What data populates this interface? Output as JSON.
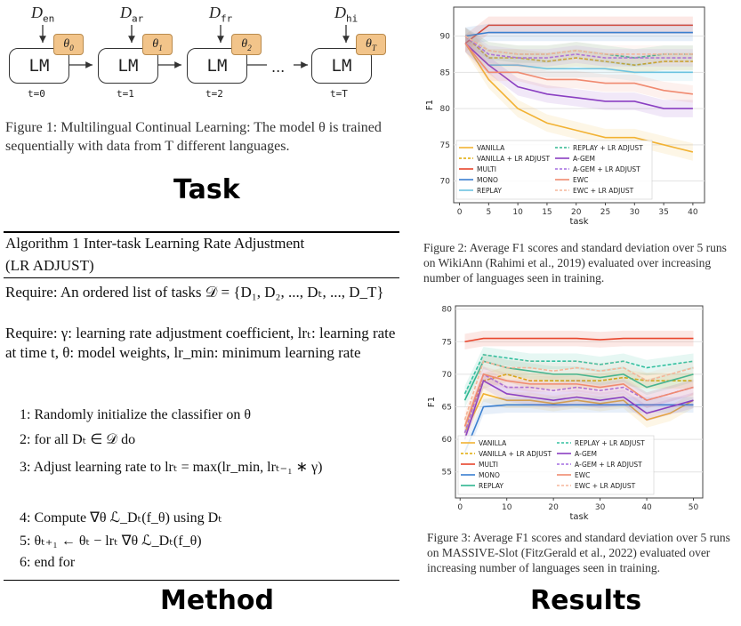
{
  "task": {
    "d_labels": [
      "D_en",
      "D_ar",
      "D_fr",
      "D_hi"
    ],
    "d_subs": [
      "en",
      "ar",
      "fr",
      "hi"
    ],
    "lm_label": "LM",
    "theta_subs": [
      "0",
      "1",
      "2",
      "T"
    ],
    "t_labels": [
      "t=0",
      "t=1",
      "t=2",
      "t=T"
    ],
    "ellipsis": "...",
    "caption": "Figure 1: Multilingual Continual Learning: The model θ is trained sequentially with data from T different languages.",
    "section_label": "Task"
  },
  "method": {
    "alg_title": "Algorithm 1 Inter-task Learning Rate Adjustment",
    "alg_subtitle": "(LR ADJUST)",
    "require1": "Require: An ordered list of tasks 𝒟 = {D₁, D₂, ..., Dₜ, ..., D_T}",
    "require2": "Require: γ: learning rate adjustment coefficient, lrₜ: learning rate at time t, θ: model weights, lr_min: minimum learning rate",
    "lines": [
      "1:  Randomly initialize the classifier on θ",
      "2:  for all Dₜ ∈ 𝒟 do",
      "3:      Adjust learning rate to lrₜ = max(lr_min, lrₜ₋₁ ∗ γ)",
      "4:      Compute ∇θ ℒ_Dₜ(f_θ) using Dₜ",
      "5:      θₜ₊₁ ← θₜ − lrₜ ∇θ ℒ_Dₜ(f_θ)",
      "6:  end for"
    ],
    "section_label": "Method"
  },
  "results": {
    "fig2_caption": "Figure 2: Average F1 scores and standard deviation over 5 runs on WikiAnn (Rahimi et al., 2019) evaluated over increasing number of languages seen in training.",
    "fig3_caption": "Figure 3: Average F1 scores and standard deviation over 5 runs on MASSIVE-Slot (FitzGerald et al., 2022) evaluated over increasing number of languages seen in training.",
    "section_label": "Results"
  },
  "chart_data": [
    {
      "type": "line",
      "xlabel": "task",
      "ylabel": "F1",
      "x_ticks": [
        0,
        5,
        10,
        15,
        20,
        25,
        30,
        35,
        40
      ],
      "y_ticks": [
        70,
        75,
        80,
        85,
        90
      ],
      "xlim": [
        -1,
        42
      ],
      "ylim": [
        67,
        94
      ],
      "x": [
        1,
        5,
        10,
        15,
        20,
        25,
        30,
        35,
        40
      ],
      "series": [
        {
          "name": "VANILLA",
          "color": "#f2b233",
          "dash": false,
          "values": [
            89,
            84,
            80,
            78,
            77,
            76,
            76,
            75,
            74
          ]
        },
        {
          "name": "VANILLA + LR ADJUST",
          "color": "#e0a800",
          "dash": true,
          "values": [
            90,
            87,
            87,
            86.5,
            87,
            86.5,
            86,
            86.5,
            86.5
          ]
        },
        {
          "name": "MULTI",
          "color": "#e8452c",
          "dash": false,
          "values": [
            89,
            91.5,
            91.5,
            91.5,
            91.5,
            91.5,
            91.5,
            91.5,
            91.5
          ]
        },
        {
          "name": "MONO",
          "color": "#3a7fd0",
          "dash": false,
          "values": [
            90,
            90.5,
            90.5,
            90.5,
            90.5,
            90.5,
            90.5,
            90.5,
            90.5
          ]
        },
        {
          "name": "REPLAY",
          "color": "#6cc3e0",
          "dash": false,
          "values": [
            89,
            86,
            86,
            85.5,
            85.5,
            85.5,
            85,
            85,
            85
          ]
        },
        {
          "name": "REPLAY + LR ADJUST",
          "color": "#2fb58f",
          "dash": true,
          "values": [
            90,
            88,
            87.5,
            87.5,
            88,
            87.5,
            87,
            87.5,
            87.5
          ]
        },
        {
          "name": "A-GEM",
          "color": "#8a3fc2",
          "dash": false,
          "values": [
            89,
            86,
            83,
            82,
            81.5,
            81,
            81,
            80,
            80
          ]
        },
        {
          "name": "A-GEM + LR ADJUST",
          "color": "#a46de0",
          "dash": true,
          "values": [
            90,
            87.5,
            87,
            87,
            87.5,
            87,
            87,
            87,
            87
          ]
        },
        {
          "name": "EWC",
          "color": "#f08a70",
          "dash": false,
          "values": [
            89,
            85,
            85,
            84,
            84,
            83.5,
            83.5,
            82.5,
            82
          ]
        },
        {
          "name": "EWC + LR ADJUST",
          "color": "#f5b59a",
          "dash": true,
          "values": [
            90,
            88,
            87.5,
            87.5,
            88,
            87.5,
            87.5,
            87.5,
            87.5
          ]
        }
      ],
      "legend": "bottom-left"
    },
    {
      "type": "line",
      "xlabel": "task",
      "ylabel": "F1",
      "x_ticks": [
        0,
        10,
        20,
        30,
        40,
        50
      ],
      "y_ticks": [
        55,
        60,
        65,
        70,
        75,
        80
      ],
      "xlim": [
        -1,
        52
      ],
      "ylim": [
        51,
        80.5
      ],
      "x": [
        1,
        5,
        10,
        15,
        20,
        25,
        30,
        35,
        40,
        45,
        50
      ],
      "series": [
        {
          "name": "VANILLA",
          "color": "#f2b233",
          "dash": false,
          "values": [
            61,
            67,
            66,
            66,
            65.5,
            66,
            65.5,
            66,
            63,
            64,
            66
          ]
        },
        {
          "name": "VANILLA + LR ADJUST",
          "color": "#e0a800",
          "dash": true,
          "values": [
            62,
            69,
            70,
            69,
            69,
            69,
            69,
            69.5,
            69,
            69,
            69
          ]
        },
        {
          "name": "MULTI",
          "color": "#e8452c",
          "dash": false,
          "values": [
            75,
            75.5,
            75.5,
            75.5,
            75.5,
            75.5,
            75.3,
            75.5,
            75.5,
            75.5,
            75.5
          ]
        },
        {
          "name": "MONO",
          "color": "#3a7fd0",
          "dash": false,
          "values": [
            58,
            65,
            65.3,
            65.3,
            65.3,
            65.3,
            65.3,
            65.3,
            65.3,
            65.3,
            65.3
          ]
        },
        {
          "name": "REPLAY",
          "color": "#2fb58f",
          "dash": false,
          "values": [
            66,
            72,
            71,
            70.5,
            70,
            70,
            69.5,
            70,
            68,
            69,
            70
          ]
        },
        {
          "name": "REPLAY + LR ADJUST",
          "color": "#34c0a0",
          "dash": true,
          "values": [
            67,
            73,
            72.5,
            72,
            72,
            72,
            71.5,
            72,
            71,
            71.5,
            72
          ]
        },
        {
          "name": "A-GEM",
          "color": "#8a3fc2",
          "dash": false,
          "values": [
            60,
            69,
            67,
            66.5,
            66,
            66.5,
            66,
            66.5,
            64,
            65,
            66
          ]
        },
        {
          "name": "A-GEM + LR ADJUST",
          "color": "#a46de0",
          "dash": true,
          "values": [
            61,
            70,
            68,
            68,
            67.5,
            68,
            67.5,
            68,
            66,
            67,
            68
          ]
        },
        {
          "name": "EWC",
          "color": "#f08a70",
          "dash": false,
          "values": [
            62,
            70,
            69,
            68.5,
            68.5,
            68.5,
            68,
            68.5,
            66,
            67,
            68
          ]
        },
        {
          "name": "EWC + LR ADJUST",
          "color": "#f5b59a",
          "dash": true,
          "values": [
            63,
            72,
            71,
            71,
            70.5,
            71,
            70.5,
            71,
            69,
            70,
            71
          ]
        }
      ],
      "legend": "bottom-left"
    }
  ]
}
